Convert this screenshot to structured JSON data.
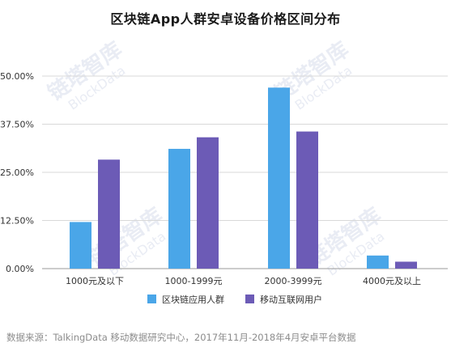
{
  "title": "区块链App人群安卓设备价格区间分布",
  "footnote": "数据来源：TalkingData 移动数据研究中心，2017年11月-2018年4月安卓平台数据",
  "watermark": {
    "line1": "链塔智库",
    "line2": "BlockData"
  },
  "colors": {
    "series_1": "#4aa6e8",
    "series_2": "#6c5bb6",
    "grid": "#d9d9d9",
    "axis": "#9a9a9a",
    "text": "#333333",
    "watermark": "#e9ecf4"
  },
  "chart_data": {
    "type": "bar",
    "title": "区块链App人群安卓设备价格区间分布",
    "categories": [
      "1000元及以下",
      "1000-1999元",
      "2000-3999元",
      "4000元及以上"
    ],
    "series": [
      {
        "name": "区块链应用人群",
        "values": [
          12.1,
          31.1,
          47.0,
          3.4
        ]
      },
      {
        "name": "移动互联网用户",
        "values": [
          28.3,
          34.1,
          35.6,
          1.8
        ]
      }
    ],
    "ylim": [
      0,
      50
    ],
    "yticks": [
      0,
      12.5,
      25,
      37.5,
      50
    ],
    "ytick_labels": [
      "0.00%",
      "12.50%",
      "25.00%",
      "37.50%",
      "50.00%"
    ],
    "grid": true,
    "legend_position": "bottom"
  }
}
